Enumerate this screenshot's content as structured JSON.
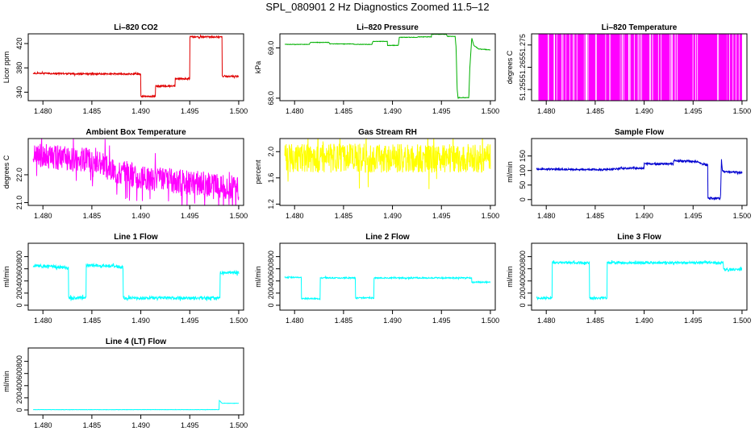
{
  "title": "SPL_080901  2 Hz Diagnostics Zoomed 11.5–12",
  "chart_data": [
    {
      "type": "line",
      "title": "Li–820 CO2",
      "ylabel": "Licor ppm",
      "color": "#e00000",
      "xlim": [
        1.4785,
        1.5005
      ],
      "xticks": [
        "1.480",
        "1.485",
        "1.490",
        "1.495",
        "1.500"
      ],
      "xtick_values": [
        1.48,
        1.485,
        1.49,
        1.495,
        1.5
      ],
      "ylim": [
        326,
        436
      ],
      "yticks": [
        "340",
        "380",
        "420"
      ],
      "ytick_values": [
        340,
        380,
        420
      ],
      "noise": 1.2,
      "x": [
        1.479,
        1.486,
        1.48601,
        1.48999,
        1.49,
        1.4915,
        1.49151,
        1.4935,
        1.49351,
        1.49499,
        1.495,
        1.4983,
        1.49831,
        1.5
      ],
      "y": [
        371,
        370,
        370,
        370,
        333,
        333,
        350,
        350,
        362,
        362,
        431,
        431,
        366,
        366
      ]
    },
    {
      "type": "line",
      "title": "Li–820 Pressure",
      "ylabel": "kPa",
      "color": "#00b000",
      "xlim": [
        1.4785,
        1.5005
      ],
      "xticks": [
        "1.480",
        "1.485",
        "1.490",
        "1.495",
        "1.500"
      ],
      "xtick_values": [
        1.48,
        1.485,
        1.49,
        1.495,
        1.5
      ],
      "ylim": [
        67.95,
        69.28
      ],
      "yticks": [
        "68.0",
        "69.0"
      ],
      "ytick_values": [
        68.0,
        69.0
      ],
      "noise": 0.004,
      "x": [
        1.479,
        1.4815,
        1.4816,
        1.4835,
        1.4836,
        1.486,
        1.4861,
        1.4879,
        1.488,
        1.48949,
        1.4895,
        1.4906,
        1.4907,
        1.4925,
        1.4926,
        1.49399,
        1.494,
        1.4955,
        1.4956,
        1.4964,
        1.4965,
        1.4966,
        1.4967,
        1.4968,
        1.4978,
        1.4979,
        1.4981,
        1.4983,
        1.4988,
        1.4995,
        1.5
      ],
      "y": [
        69.07,
        69.07,
        69.11,
        69.11,
        69.08,
        69.08,
        69.07,
        69.07,
        69.13,
        69.13,
        69.05,
        69.05,
        69.21,
        69.21,
        69.22,
        69.22,
        69.27,
        69.27,
        69.23,
        69.23,
        69.0,
        68.2,
        68.0,
        68.01,
        68.01,
        68.6,
        69.2,
        69.05,
        68.98,
        68.97,
        68.96
      ]
    },
    {
      "type": "line",
      "title": "Li–820 Temperature",
      "ylabel": "degrees C",
      "color": "#ff00ff",
      "xlim": [
        1.4785,
        1.5005
      ],
      "xticks": [
        "1.480",
        "1.485",
        "1.490",
        "1.495",
        "1.500"
      ],
      "xtick_values": [
        1.48,
        1.485,
        1.49,
        1.495,
        1.5
      ],
      "ylim": [
        51.25,
        51.28
      ],
      "yticks": [
        "51.255",
        "51.265",
        "51.275"
      ],
      "ytick_values": [
        51.255,
        51.265,
        51.275
      ],
      "fill_band": [
        51.25,
        51.28
      ],
      "x": [
        1.4795,
        1.4799,
        1.4806,
        1.4821,
        1.4825,
        1.4838,
        1.4848,
        1.4875,
        1.4893,
        1.4903,
        1.4945,
        1.4967,
        1.4985,
        1.4992,
        1.4999
      ],
      "y": [
        51.25,
        51.25,
        51.25,
        51.25,
        51.25,
        51.25,
        51.25,
        51.25,
        51.25,
        51.25,
        51.25,
        51.25,
        51.25,
        51.25,
        51.25
      ]
    },
    {
      "type": "line",
      "title": "Ambient Box Temperature",
      "ylabel": "degrees C",
      "color": "#ff00ff",
      "xlim": [
        1.4785,
        1.5005
      ],
      "xticks": [
        "1.480",
        "1.485",
        "1.490",
        "1.495",
        "1.500"
      ],
      "xtick_values": [
        1.48,
        1.485,
        1.49,
        1.495,
        1.5
      ],
      "ylim": [
        20.9,
        23.3
      ],
      "yticks": [
        "21.0",
        "22.0"
      ],
      "ytick_values": [
        21.0,
        22.0
      ],
      "noise": 0.45,
      "x": [
        1.479,
        1.482,
        1.485,
        1.487,
        1.49,
        1.493,
        1.496,
        1.498,
        1.5
      ],
      "y": [
        22.7,
        22.6,
        22.5,
        22.2,
        21.9,
        21.8,
        21.7,
        21.6,
        21.5
      ]
    },
    {
      "type": "line",
      "title": "Gas Stream RH",
      "ylabel": "percent",
      "color": "#ffff00",
      "xlim": [
        1.4785,
        1.5005
      ],
      "xticks": [
        "1.480",
        "1.485",
        "1.490",
        "1.495",
        "1.500"
      ],
      "xtick_values": [
        1.48,
        1.485,
        1.49,
        1.495,
        1.5
      ],
      "ylim": [
        1.18,
        2.2
      ],
      "yticks": [
        "1.2",
        "1.6",
        "2.0"
      ],
      "ytick_values": [
        1.2,
        1.6,
        2.0
      ],
      "noise": 0.22,
      "x": [
        1.479,
        1.5
      ],
      "y": [
        1.9,
        1.9
      ]
    },
    {
      "type": "line",
      "title": "Sample Flow",
      "ylabel": "ml/min",
      "color": "#0000d0",
      "xlim": [
        1.4785,
        1.5005
      ],
      "xticks": [
        "1.480",
        "1.485",
        "1.490",
        "1.495",
        "1.500"
      ],
      "xtick_values": [
        1.48,
        1.485,
        1.49,
        1.495,
        1.5
      ],
      "ylim": [
        -20,
        210
      ],
      "yticks": [
        "0",
        "50",
        "100",
        "150"
      ],
      "ytick_values": [
        0,
        50,
        100,
        150
      ],
      "noise": 3,
      "x": [
        1.479,
        1.486,
        1.48801,
        1.48999,
        1.49,
        1.49299,
        1.493,
        1.4955,
        1.4958,
        1.4965,
        1.49651,
        1.4978,
        1.4979,
        1.498,
        1.4983,
        1.5
      ],
      "y": [
        105,
        103,
        108,
        108,
        123,
        123,
        135,
        130,
        123,
        120,
        5,
        5,
        135,
        100,
        95,
        93
      ]
    },
    {
      "type": "line",
      "title": "Line 1 Flow",
      "ylabel": "ml/min",
      "color": "#00ffff",
      "xlim": [
        1.4785,
        1.5005
      ],
      "xticks": [
        "1.480",
        "1.485",
        "1.490",
        "1.495",
        "1.500"
      ],
      "xtick_values": [
        1.48,
        1.485,
        1.49,
        1.495,
        1.5
      ],
      "ylim": [
        -80,
        1020
      ],
      "yticks": [
        "0",
        "200",
        "400",
        "600",
        "800"
      ],
      "ytick_values": [
        0,
        200,
        400,
        600,
        800
      ],
      "noise": 25,
      "x": [
        1.479,
        1.481,
        1.4826,
        1.48261,
        1.4844,
        1.48441,
        1.4871,
        1.4882,
        1.48821,
        1.4981,
        1.49811,
        1.5
      ],
      "y": [
        650,
        640,
        610,
        120,
        120,
        660,
        650,
        620,
        120,
        120,
        540,
        540
      ]
    },
    {
      "type": "line",
      "title": "Line 2 Flow",
      "ylabel": "ml/min",
      "color": "#00ffff",
      "xlim": [
        1.4785,
        1.5005
      ],
      "xticks": [
        "1.480",
        "1.485",
        "1.490",
        "1.495",
        "1.500"
      ],
      "xtick_values": [
        1.48,
        1.485,
        1.49,
        1.495,
        1.5
      ],
      "ylim": [
        -80,
        1020
      ],
      "yticks": [
        "0",
        "200",
        "400",
        "600",
        "800"
      ],
      "ytick_values": [
        0,
        200,
        400,
        600,
        800
      ],
      "noise": 10,
      "x": [
        1.479,
        1.4807,
        1.48071,
        1.4826,
        1.48261,
        1.4862,
        1.48621,
        1.4881,
        1.48811,
        1.4981,
        1.49811,
        1.5
      ],
      "y": [
        460,
        460,
        110,
        110,
        450,
        450,
        120,
        120,
        450,
        450,
        380,
        380
      ]
    },
    {
      "type": "line",
      "title": "Line 3 Flow",
      "ylabel": "ml/min",
      "color": "#00ffff",
      "xlim": [
        1.4785,
        1.5005
      ],
      "xticks": [
        "1.480",
        "1.485",
        "1.490",
        "1.495",
        "1.500"
      ],
      "xtick_values": [
        1.48,
        1.485,
        1.49,
        1.495,
        1.5
      ],
      "ylim": [
        -80,
        1020
      ],
      "yticks": [
        "0",
        "200",
        "400",
        "600",
        "800"
      ],
      "ytick_values": [
        0,
        200,
        400,
        600,
        800
      ],
      "noise": 20,
      "x": [
        1.479,
        1.4806,
        1.48061,
        1.4826,
        1.4844,
        1.48441,
        1.4862,
        1.48621,
        1.4981,
        1.49811,
        1.5
      ],
      "y": [
        120,
        120,
        700,
        700,
        700,
        120,
        120,
        700,
        700,
        590,
        590
      ]
    },
    {
      "type": "line",
      "title": "Line 4 (LT) Flow",
      "ylabel": "ml/min",
      "color": "#00ffff",
      "xlim": [
        1.4785,
        1.5005
      ],
      "xticks": [
        "1.480",
        "1.485",
        "1.490",
        "1.495",
        "1.500"
      ],
      "xtick_values": [
        1.48,
        1.485,
        1.49,
        1.495,
        1.5
      ],
      "ylim": [
        -80,
        1020
      ],
      "yticks": [
        "0",
        "200",
        "400",
        "600",
        "800"
      ],
      "ytick_values": [
        0,
        200,
        400,
        600,
        800
      ],
      "noise": 2,
      "x": [
        1.479,
        1.49799,
        1.498,
        1.4983,
        1.5
      ],
      "y": [
        5,
        5,
        160,
        110,
        110
      ]
    }
  ]
}
